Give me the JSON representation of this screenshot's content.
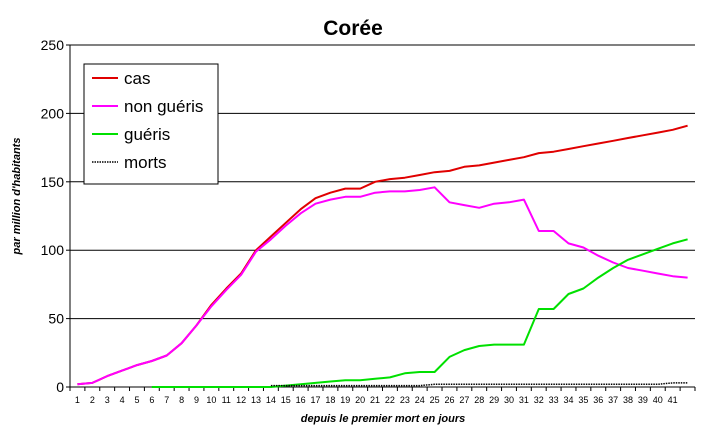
{
  "chart_data": {
    "type": "line",
    "title": "Corée",
    "xlabel": "depuis le premier mort en jours",
    "ylabel": "par million d'habitants",
    "ylim": [
      0,
      250
    ],
    "yticks": [
      0,
      50,
      100,
      150,
      200,
      250
    ],
    "grid": "horizontal",
    "legend_position": "top-left",
    "x": [
      1,
      2,
      3,
      4,
      5,
      6,
      7,
      8,
      9,
      10,
      11,
      12,
      13,
      14,
      15,
      16,
      17,
      18,
      19,
      20,
      21,
      22,
      23,
      24,
      25,
      26,
      27,
      28,
      29,
      30,
      31,
      32,
      33,
      34,
      35,
      36,
      37,
      38,
      39,
      40,
      41,
      42
    ],
    "xtick_labels": [
      "1",
      "2",
      "3",
      "4",
      "5",
      "6",
      "7",
      "8",
      "9",
      "10",
      "11",
      "12",
      "13",
      "14",
      "15",
      "16",
      "17",
      "18",
      "19",
      "20",
      "21",
      "22",
      "23",
      "24",
      "25",
      "26",
      "27",
      "28",
      "29",
      "30",
      "31",
      "32",
      "33",
      "34",
      "35",
      "36",
      "37",
      "38",
      "39",
      "40",
      "41"
    ],
    "series": [
      {
        "name": "cas",
        "color": "#e00000",
        "values": [
          2,
          3,
          8,
          12,
          16,
          19,
          23,
          32,
          45,
          60,
          72,
          83,
          100,
          110,
          120,
          130,
          138,
          142,
          145,
          145,
          150,
          152,
          153,
          155,
          157,
          158,
          161,
          162,
          164,
          166,
          168,
          171,
          172,
          174,
          176,
          178,
          180,
          182,
          184,
          186,
          188,
          191
        ]
      },
      {
        "name": "non guéris",
        "color": "#ff00ff",
        "values": [
          2,
          3,
          8,
          12,
          16,
          19,
          23,
          32,
          45,
          59,
          71,
          82,
          99,
          108,
          118,
          127,
          134,
          137,
          139,
          139,
          142,
          143,
          143,
          144,
          146,
          135,
          133,
          131,
          134,
          135,
          137,
          114,
          114,
          105,
          102,
          96,
          91,
          87,
          85,
          83,
          81,
          80
        ]
      },
      {
        "name": "guéris",
        "color": "#00e000",
        "values": [
          null,
          null,
          null,
          null,
          null,
          0,
          0,
          0,
          0,
          0,
          0,
          0,
          0,
          0,
          1,
          2,
          3,
          4,
          5,
          5,
          6,
          7,
          10,
          11,
          11,
          22,
          27,
          30,
          31,
          31,
          31,
          57,
          57,
          68,
          72,
          80,
          87,
          93,
          97,
          101,
          105,
          108
        ]
      },
      {
        "name": "morts",
        "color": "#000000",
        "values": [
          null,
          null,
          null,
          null,
          null,
          null,
          null,
          null,
          null,
          null,
          null,
          null,
          null,
          1,
          1,
          1,
          1,
          1,
          1,
          1,
          1,
          1,
          1,
          1,
          2,
          2,
          2,
          2,
          2,
          2,
          2,
          2,
          2,
          2,
          2,
          2,
          2,
          2,
          2,
          2,
          3,
          3
        ]
      }
    ]
  }
}
